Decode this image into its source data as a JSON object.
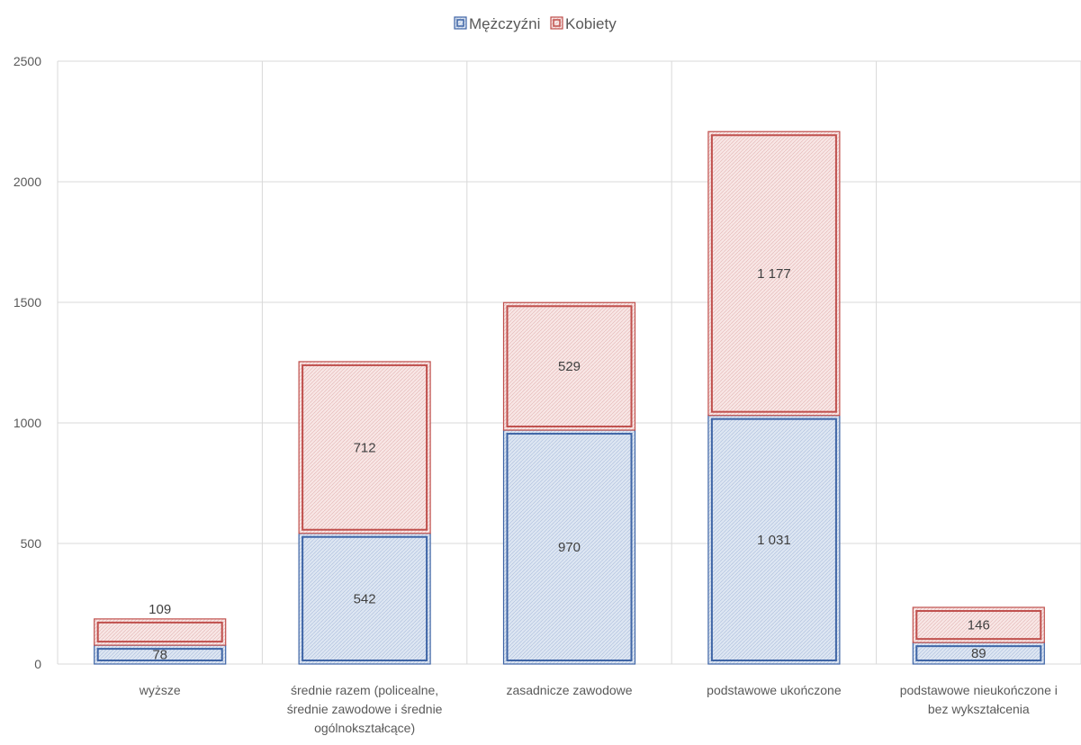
{
  "chart_data": {
    "type": "bar",
    "stacked": true,
    "categories": [
      [
        "wyższe"
      ],
      [
        "średnie razem (policealne,",
        "średnie zawodowe i średnie",
        "ogólnokształcące)"
      ],
      [
        "zasadnicze zawodowe"
      ],
      [
        "podstawowe ukończone"
      ],
      [
        "podstawowe nieukończone i",
        "bez wykształcenia"
      ]
    ],
    "series": [
      {
        "name": "Mężczyźni",
        "values": [
          78,
          542,
          970,
          1031,
          89
        ],
        "labels": [
          "78",
          "542",
          "970",
          "1 031",
          "89"
        ],
        "color": "#3f65a6",
        "fill": "#dbe4f1"
      },
      {
        "name": "Kobiety",
        "values": [
          109,
          712,
          529,
          1177,
          146
        ],
        "labels": [
          "109",
          "712",
          "529",
          "1 177",
          "146"
        ],
        "color": "#c0504d",
        "fill": "#f7e0df"
      }
    ],
    "ylim": [
      0,
      2500
    ],
    "yticks": [
      0,
      500,
      1000,
      1500,
      2000,
      2500
    ],
    "grid": true,
    "legend_position": "top-center"
  }
}
